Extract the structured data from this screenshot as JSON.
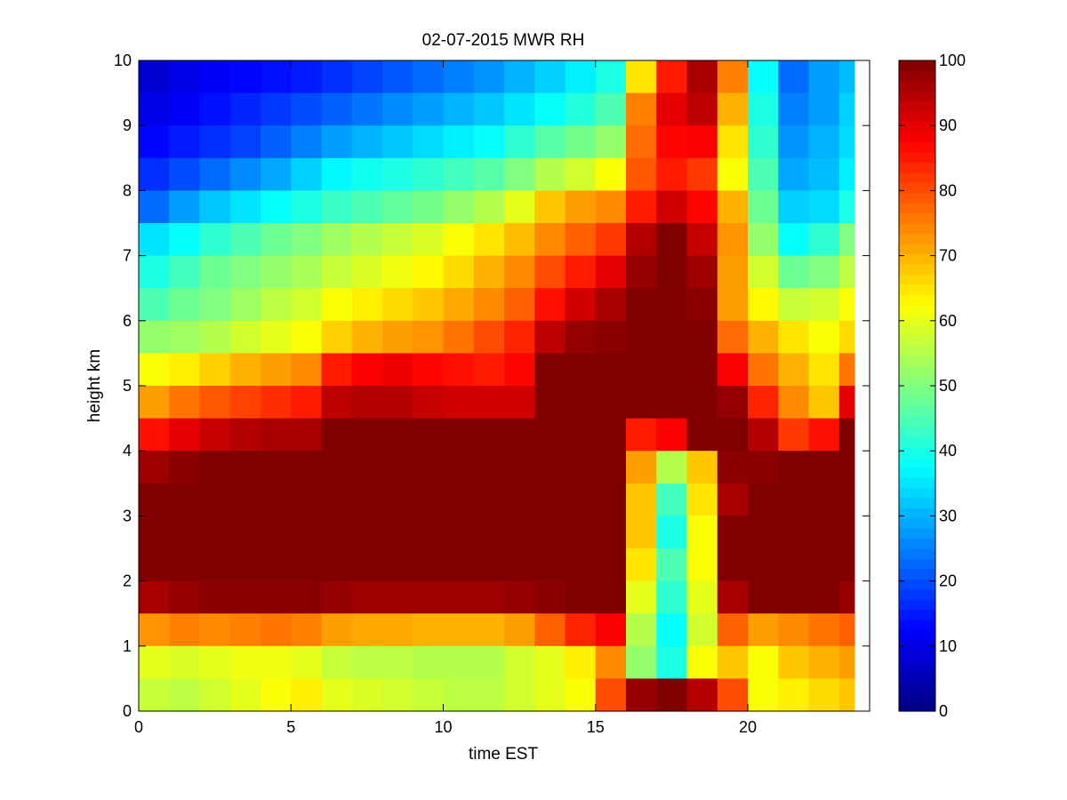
{
  "chart_data": {
    "type": "heatmap",
    "title": "02-07-2015 MWR RH",
    "xlabel": "time EST",
    "ylabel": "height km",
    "xlim": [
      0,
      24
    ],
    "ylim": [
      0,
      10
    ],
    "x_ticks": [
      0,
      5,
      10,
      15,
      20
    ],
    "y_ticks": [
      0,
      1,
      2,
      3,
      4,
      5,
      6,
      7,
      8,
      9,
      10
    ],
    "colorbar": {
      "min": 0,
      "max": 100,
      "ticks": [
        0,
        10,
        20,
        30,
        40,
        50,
        60,
        70,
        80,
        90,
        100
      ],
      "colormap": "jet"
    },
    "x_edges": [
      0,
      1,
      2,
      3,
      4,
      5,
      6,
      7,
      8,
      9,
      10,
      11,
      12,
      13,
      14,
      15,
      16,
      17,
      18,
      19,
      20,
      21,
      22,
      23,
      23.5
    ],
    "z_rows": [
      {
        "h": 9.75,
        "v": [
          8,
          10,
          12,
          13,
          14,
          15,
          17,
          19,
          21,
          23,
          25,
          27,
          30,
          33,
          36,
          40,
          65,
          85,
          96,
          75,
          38,
          23,
          28,
          31
        ]
      },
      {
        "h": 9.25,
        "v": [
          10,
          12,
          14,
          16,
          18,
          20,
          22,
          24,
          26,
          28,
          30,
          32,
          35,
          38,
          41,
          45,
          75,
          90,
          94,
          70,
          40,
          25,
          28,
          33
        ]
      },
      {
        "h": 8.75,
        "v": [
          13,
          15,
          17,
          19,
          22,
          25,
          28,
          30,
          32,
          34,
          36,
          38,
          42,
          46,
          49,
          52,
          77,
          87,
          88,
          65,
          42,
          27,
          30,
          34
        ]
      },
      {
        "h": 8.25,
        "v": [
          17,
          20,
          23,
          26,
          29,
          33,
          37,
          39,
          40,
          42,
          44,
          46,
          50,
          55,
          58,
          62,
          79,
          85,
          82,
          62,
          45,
          29,
          31,
          36
        ]
      },
      {
        "h": 7.75,
        "v": [
          23,
          28,
          32,
          35,
          38,
          40,
          43,
          45,
          47,
          49,
          52,
          55,
          60,
          68,
          72,
          74,
          85,
          92,
          87,
          70,
          48,
          33,
          34,
          40
        ]
      },
      {
        "h": 7.25,
        "v": [
          35,
          38,
          42,
          45,
          48,
          50,
          53,
          55,
          57,
          59,
          62,
          65,
          69,
          74,
          78,
          82,
          95,
          100,
          93,
          73,
          52,
          38,
          42,
          50
        ]
      },
      {
        "h": 6.75,
        "v": [
          40,
          44,
          48,
          50,
          52,
          54,
          57,
          59,
          61,
          63,
          66,
          70,
          74,
          80,
          85,
          90,
          98,
          100,
          97,
          72,
          58,
          48,
          50,
          56
        ]
      },
      {
        "h": 6.25,
        "v": [
          45,
          48,
          50,
          53,
          56,
          58,
          62,
          64,
          66,
          68,
          71,
          74,
          78,
          86,
          92,
          96,
          100,
          100,
          99,
          72,
          63,
          57,
          58,
          62
        ]
      },
      {
        "h": 5.75,
        "v": [
          52,
          53,
          55,
          58,
          60,
          62,
          67,
          70,
          72,
          73,
          76,
          80,
          84,
          94,
          98,
          99,
          100,
          100,
          100,
          77,
          70,
          65,
          62,
          66
        ]
      },
      {
        "h": 5.25,
        "v": [
          62,
          64,
          67,
          70,
          72,
          74,
          85,
          88,
          89,
          87,
          86,
          85,
          87,
          100,
          100,
          100,
          100,
          100,
          100,
          88,
          76,
          70,
          65,
          76
        ]
      },
      {
        "h": 4.75,
        "v": [
          72,
          76,
          79,
          81,
          83,
          85,
          94,
          95,
          95,
          93,
          92,
          92,
          92,
          100,
          100,
          100,
          100,
          100,
          100,
          98,
          84,
          74,
          68,
          90
        ]
      },
      {
        "h": 4.25,
        "v": [
          86,
          90,
          93,
          95,
          96,
          96,
          100,
          100,
          100,
          100,
          100,
          100,
          100,
          100,
          100,
          100,
          85,
          88,
          100,
          100,
          95,
          82,
          86,
          100
        ]
      },
      {
        "h": 3.75,
        "v": [
          97,
          99,
          100,
          100,
          100,
          100,
          100,
          100,
          100,
          100,
          100,
          100,
          100,
          100,
          100,
          100,
          72,
          55,
          68,
          99,
          99,
          100,
          100,
          100
        ]
      },
      {
        "h": 3.25,
        "v": [
          100,
          100,
          100,
          100,
          100,
          100,
          100,
          100,
          100,
          100,
          100,
          100,
          100,
          100,
          100,
          100,
          68,
          44,
          65,
          96,
          100,
          100,
          100,
          100
        ]
      },
      {
        "h": 2.75,
        "v": [
          100,
          100,
          100,
          100,
          100,
          100,
          100,
          100,
          100,
          100,
          100,
          100,
          100,
          100,
          100,
          100,
          68,
          40,
          62,
          100,
          100,
          100,
          100,
          100
        ]
      },
      {
        "h": 2.25,
        "v": [
          100,
          100,
          100,
          100,
          100,
          100,
          100,
          100,
          100,
          100,
          100,
          100,
          100,
          100,
          100,
          100,
          65,
          45,
          62,
          100,
          100,
          100,
          100,
          100
        ]
      },
      {
        "h": 1.75,
        "v": [
          96,
          98,
          99,
          99,
          99,
          99,
          98,
          97,
          97,
          97,
          97,
          97,
          98,
          99,
          100,
          100,
          60,
          42,
          60,
          96,
          100,
          100,
          100,
          98
        ]
      },
      {
        "h": 1.25,
        "v": [
          73,
          75,
          74,
          75,
          76,
          75,
          72,
          71,
          71,
          70,
          70,
          70,
          72,
          78,
          84,
          88,
          55,
          38,
          58,
          78,
          72,
          74,
          76,
          78
        ]
      },
      {
        "h": 0.75,
        "v": [
          60,
          59,
          60,
          61,
          61,
          60,
          57,
          56,
          56,
          55,
          55,
          55,
          58,
          60,
          64,
          74,
          52,
          40,
          62,
          68,
          62,
          68,
          70,
          72
        ]
      },
      {
        "h": 0.25,
        "v": [
          57,
          56,
          58,
          60,
          62,
          64,
          60,
          59,
          58,
          57,
          56,
          56,
          58,
          60,
          62,
          80,
          98,
          100,
          95,
          80,
          62,
          64,
          66,
          68
        ]
      }
    ]
  }
}
